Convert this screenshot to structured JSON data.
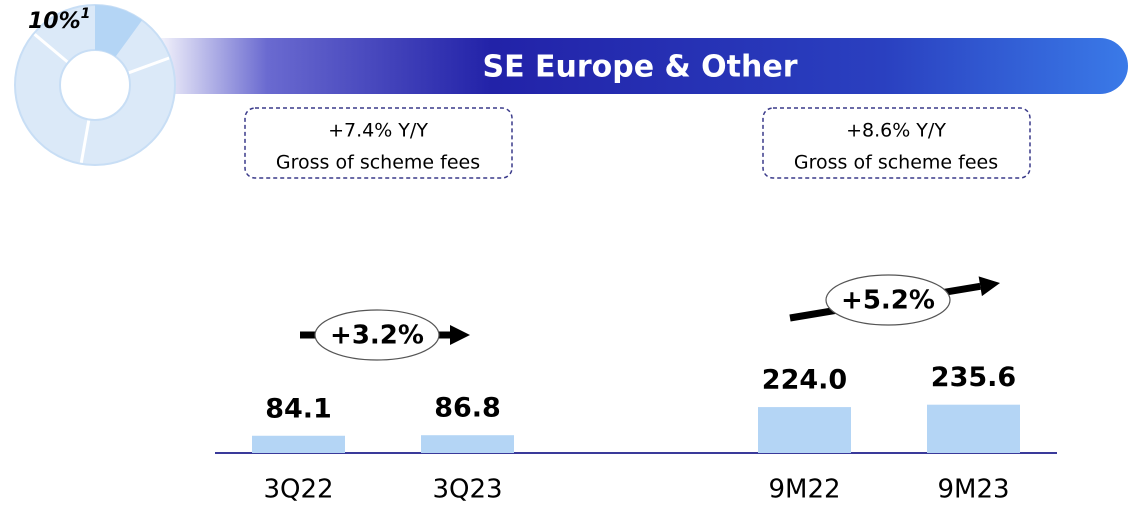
{
  "title": "SE Europe & Other",
  "chart_data": [
    {
      "type": "pie",
      "values": [
        10
      ],
      "value_labels": [
        "10%"
      ],
      "footnote_marker": "1",
      "color": "#b4d5f5"
    },
    {
      "type": "bar",
      "categories": [
        "3Q22",
        "3Q23"
      ],
      "values": [
        84.1,
        86.8
      ],
      "color": "#b4d5f5",
      "ylim": [
        0,
        1000
      ],
      "growth": "+3.2%",
      "annotations": [
        "+7.4% Y/Y",
        "Gross of scheme fees"
      ]
    },
    {
      "type": "bar",
      "categories": [
        "9M22",
        "9M23"
      ],
      "values": [
        224.0,
        235.6
      ],
      "value_labels": [
        "224.0",
        "235.6"
      ],
      "color": "#b4d5f5",
      "ylim": [
        0,
        1000
      ],
      "growth": "+5.2%",
      "annotations": [
        "+8.6% Y/Y",
        "Gross of scheme fees"
      ]
    }
  ]
}
